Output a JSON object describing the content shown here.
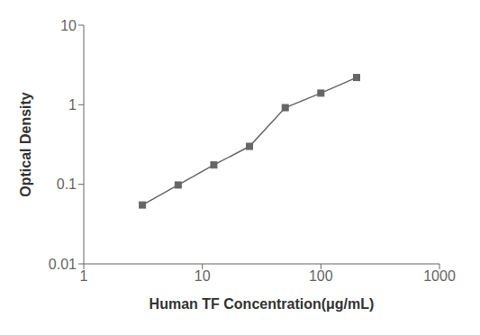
{
  "chart_data": {
    "type": "line",
    "x": [
      3.125,
      6.25,
      12.5,
      25,
      50,
      100,
      200
    ],
    "values": [
      0.055,
      0.098,
      0.175,
      0.3,
      0.92,
      1.4,
      2.2
    ],
    "xlabel": "Human TF Concentration(μg/mL)",
    "ylabel": "Optical Density",
    "xlim": [
      1,
      1000
    ],
    "ylim": [
      0.01,
      10
    ],
    "xticks": [
      1,
      10,
      100,
      1000
    ],
    "yticks": [
      0.01,
      0.1,
      1,
      10
    ],
    "log": true,
    "color": "#666666",
    "marker": "square"
  }
}
